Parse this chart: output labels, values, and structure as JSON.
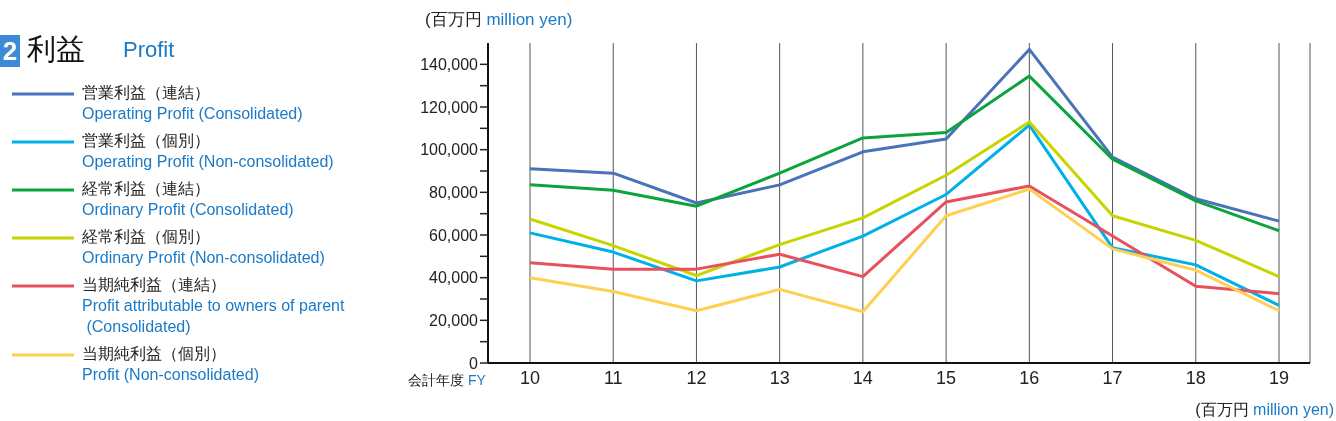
{
  "chart_data": {
    "type": "line",
    "title": "利益",
    "subtitle": "Profit",
    "ylabel": "(百万円 million yen)",
    "xlabel": "会計年度 FY",
    "annotations": [
      "2",
      "(百万円 million yen)"
    ],
    "categories": [
      "10",
      "11",
      "12",
      "13",
      "14",
      "15",
      "16",
      "17",
      "18",
      "19"
    ],
    "series": [
      {
        "name": "営業利益（連結）\nOperating Profit (Consolidated)",
        "color": "#4a72b8",
        "values": [
          91000,
          89000,
          75000,
          83500,
          99000,
          105000,
          147000,
          96500,
          77000,
          66500
        ]
      },
      {
        "name": "営業利益（個別）\nOperating Profit (Non-consolidated)",
        "color": "#00b0e8",
        "values": [
          61000,
          52000,
          38500,
          45000,
          59500,
          79000,
          111500,
          54000,
          46000,
          27000
        ]
      },
      {
        "name": "経常利益（連結）\nOrdinary Profit (Consolidated)",
        "color": "#0aa33c",
        "values": [
          83500,
          81000,
          73500,
          89000,
          105500,
          108000,
          134500,
          95500,
          76000,
          62000
        ]
      },
      {
        "name": "経常利益（個別）\nOrdinary Profit (Non-consolidated)",
        "color": "#c8d400",
        "values": [
          67500,
          55000,
          41000,
          55500,
          68000,
          88000,
          113000,
          69000,
          57500,
          40500
        ]
      },
      {
        "name": "当期純利益（連結）\nProfit attributable to owners of parent\n (Consolidated)",
        "color": "#e8505e",
        "values": [
          47000,
          44000,
          44000,
          51000,
          40500,
          75500,
          83000,
          59500,
          36000,
          32500
        ]
      },
      {
        "name": "当期純利益（個別）\nProfit (Non-consolidated)",
        "color": "#ffd050",
        "values": [
          40000,
          33500,
          24500,
          34500,
          24000,
          69000,
          81500,
          53500,
          43500,
          24500
        ]
      }
    ],
    "ylim": [
      0,
      150000
    ],
    "yticks": [
      0,
      {
        "value": 10000,
        "label": null
      },
      {
        "value": 20000,
        "label": "20,000"
      },
      {
        "value": 30000,
        "label": null
      },
      {
        "value": 40000,
        "label": "40,000"
      },
      {
        "value": 50000,
        "label": null
      },
      {
        "value": 60000,
        "label": "60,000"
      },
      {
        "value": 70000,
        "label": null
      },
      {
        "value": 80000,
        "label": "80,000"
      },
      {
        "value": 90000,
        "label": null
      },
      {
        "value": 100000,
        "label": "100,000"
      },
      {
        "value": 110000,
        "label": null
      },
      {
        "value": 120000,
        "label": "120,000"
      },
      {
        "value": 130000,
        "label": null
      },
      {
        "value": 140000,
        "label": "140,000"
      }
    ],
    "grid": "x",
    "legend": "left",
    "marker": "none",
    "line_style": "solid"
  }
}
